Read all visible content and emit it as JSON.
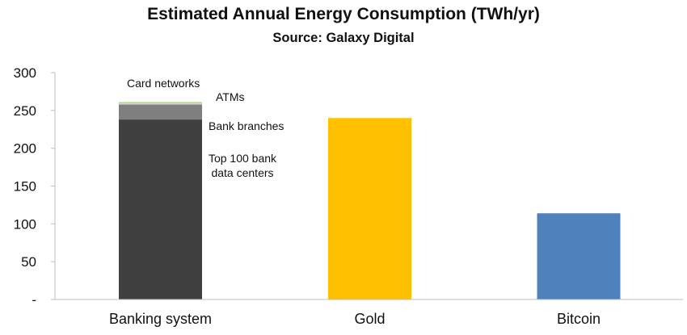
{
  "chart_data": {
    "type": "bar",
    "stacked": true,
    "title": "Estimated Annual Energy Consumption (TWh/yr)",
    "subtitle": "Source: Galaxy Digital",
    "xlabel": "",
    "ylabel": "",
    "ylim": [
      0,
      300
    ],
    "yticks": [
      0,
      50,
      100,
      150,
      200,
      250,
      300
    ],
    "ytick_labels": [
      "-",
      "50",
      "100",
      "150",
      "200",
      "250",
      "300"
    ],
    "grid": false,
    "legend": "none",
    "categories": [
      "Banking system",
      "Gold",
      "Bitcoin"
    ],
    "series": [
      {
        "name": "Top 100 bank data centers",
        "label": "Top 100 bank\ndata centers",
        "color": "#404040",
        "values": [
          238,
          240,
          114
        ]
      },
      {
        "name": "Bank branches",
        "label": "Bank branches",
        "color": "#7f7f7f",
        "values": [
          20,
          0,
          0
        ]
      },
      {
        "name": "ATMs",
        "label": "ATMs",
        "color": "#d9d9d9",
        "values": [
          2,
          0,
          0
        ]
      },
      {
        "name": "Card networks",
        "label": "Card networks",
        "color": "#92d050",
        "values": [
          1,
          0,
          0
        ]
      }
    ],
    "bar_colors": [
      "#404040",
      "#ffc000",
      "#4f81bd"
    ]
  }
}
